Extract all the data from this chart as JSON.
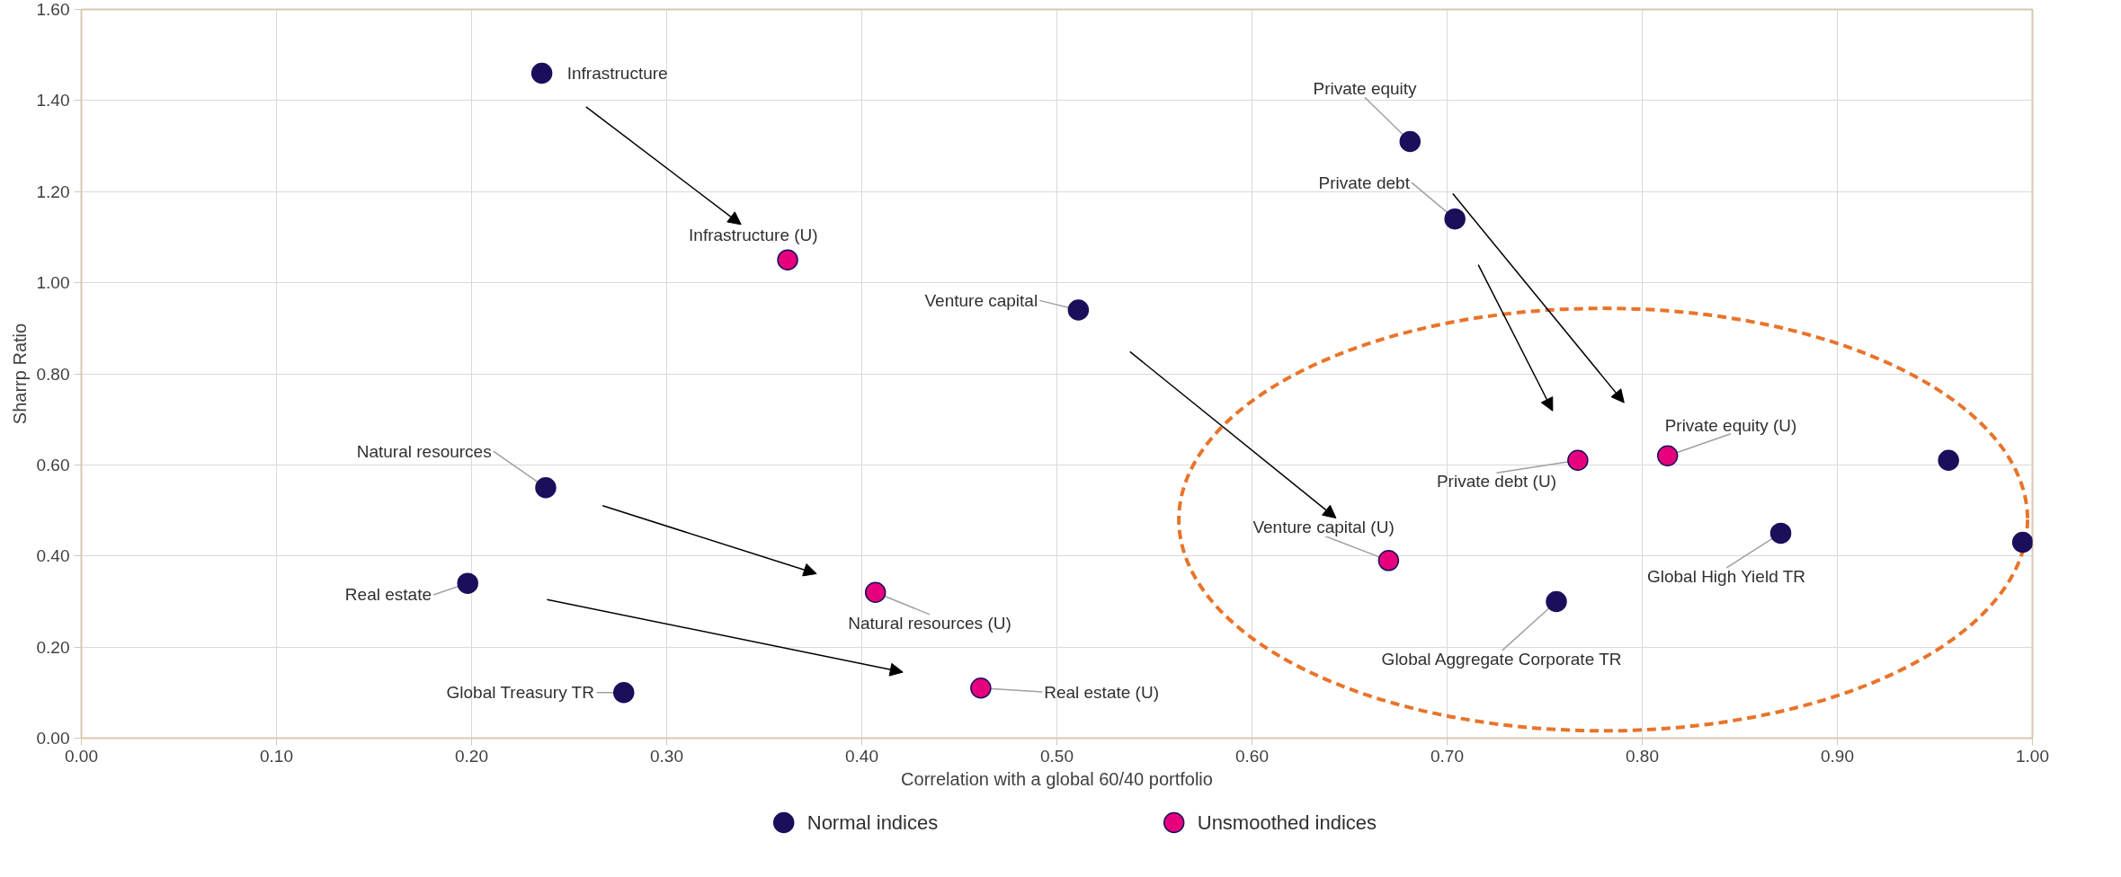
{
  "chart_data": {
    "type": "scatter",
    "xlabel": "Correlation with a global 60/40 portfolio",
    "ylabel": "Sharrp Ratio",
    "xlim": [
      0,
      1
    ],
    "ylim": [
      0,
      1.6
    ],
    "xticks": [
      {
        "value": 0,
        "label": "0.00"
      },
      {
        "value": 0.1,
        "label": "0.10"
      },
      {
        "value": 0.2,
        "label": "0.20"
      },
      {
        "value": 0.3,
        "label": "0.30"
      },
      {
        "value": 0.4,
        "label": "0.40"
      },
      {
        "value": 0.5,
        "label": "0.50"
      },
      {
        "value": 0.6,
        "label": "0.60"
      },
      {
        "value": 0.7,
        "label": "0.70"
      },
      {
        "value": 0.8,
        "label": "0.80"
      },
      {
        "value": 0.9,
        "label": "0.90"
      },
      {
        "value": 1,
        "label": "1.00"
      }
    ],
    "yticks": [
      {
        "value": 0,
        "label": "0.00"
      },
      {
        "value": 0.2,
        "label": "0.20"
      },
      {
        "value": 0.4,
        "label": "0.40"
      },
      {
        "value": 0.6,
        "label": "0.60"
      },
      {
        "value": 0.8,
        "label": "0.80"
      },
      {
        "value": 1,
        "label": "1.00"
      },
      {
        "value": 1.2,
        "label": "1.20"
      },
      {
        "value": 1.4,
        "label": "1.40"
      },
      {
        "value": 1.6,
        "label": "1.60"
      }
    ],
    "grid": true,
    "legend": "bottom",
    "marker": "circle",
    "series": [
      {
        "name": "Normal indices",
        "color": "#1b0f5c",
        "x": [
          0.236,
          0.681,
          0.704,
          0.511,
          0.238,
          0.198,
          0.278,
          0.756,
          0.871,
          0.957,
          0.995
        ],
        "values": [
          1.46,
          1.31,
          1.14,
          0.94,
          0.55,
          0.34,
          0.1,
          0.3,
          0.45,
          0.61,
          0.43
        ]
      },
      {
        "name": "Unsmoothed indices",
        "color": "#e6007e",
        "x": [
          0.362,
          0.813,
          0.767,
          0.67,
          0.407,
          0.461
        ],
        "values": [
          1.05,
          0.62,
          0.61,
          0.39,
          0.32,
          0.11
        ]
      }
    ],
    "annotations": [
      {
        "text": "Infrastructure",
        "x": 0.236,
        "y": 1.46
      },
      {
        "text": "Private equity",
        "x": 0.681,
        "y": 1.31
      },
      {
        "text": "Private debt",
        "x": 0.704,
        "y": 1.14
      },
      {
        "text": "Venture capital",
        "x": 0.511,
        "y": 0.94
      },
      {
        "text": "Natural resources",
        "x": 0.238,
        "y": 0.55
      },
      {
        "text": "Real estate",
        "x": 0.198,
        "y": 0.34
      },
      {
        "text": "Global Treasury TR",
        "x": 0.278,
        "y": 0.1
      },
      {
        "text": "Global Aggregate Corporate TR",
        "x": 0.756,
        "y": 0.3
      },
      {
        "text": "Global High Yield TR",
        "x": 0.871,
        "y": 0.45
      },
      {
        "text": "Infrastructure (U)",
        "x": 0.362,
        "y": 1.05
      },
      {
        "text": "Private equity (U)",
        "x": 0.813,
        "y": 0.62
      },
      {
        "text": "Private debt (U)",
        "x": 0.767,
        "y": 0.61
      },
      {
        "text": "Venture capital (U)",
        "x": 0.67,
        "y": 0.39
      },
      {
        "text": "Natural resources (U)",
        "x": 0.407,
        "y": 0.32
      },
      {
        "text": "Real estate (U)",
        "x": 0.461,
        "y": 0.11
      }
    ]
  }
}
